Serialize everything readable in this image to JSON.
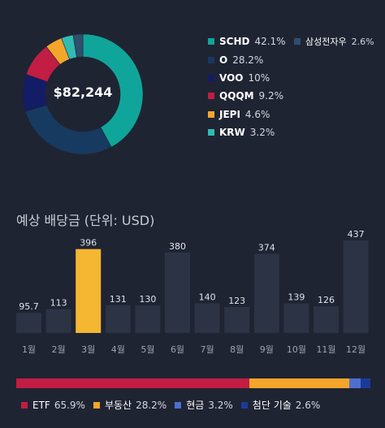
{
  "portfolio": {
    "total": "$82,244",
    "holdings": [
      {
        "name": "SCHD",
        "pct_label": "42.1%",
        "pct": 42.1,
        "color": "#10a59a"
      },
      {
        "name": "O",
        "pct_label": "28.2%",
        "pct": 28.2,
        "color": "#173a60"
      },
      {
        "name": "VOO",
        "pct_label": "10%",
        "pct": 10.0,
        "color": "#141c66"
      },
      {
        "name": "QQQM",
        "pct_label": "9.2%",
        "pct": 9.2,
        "color": "#c21d43"
      },
      {
        "name": "JEPI",
        "pct_label": "4.6%",
        "pct": 4.6,
        "color": "#f4a62a"
      },
      {
        "name": "KRW",
        "pct_label": "3.2%",
        "pct": 3.2,
        "color": "#2fbcb2"
      },
      {
        "name": "삼성전자우",
        "pct_label": "2.6%",
        "pct": 2.6,
        "color": "#2e4f6e"
      }
    ]
  },
  "dividend": {
    "title": "예상 배당금 (단위: USD)",
    "highlight_color": "#f5b731",
    "bar_color": "#2c3344"
  },
  "chart_data": {
    "type": "bar",
    "title": "예상 배당금 (단위: USD)",
    "categories": [
      "1월",
      "2월",
      "3월",
      "4월",
      "5월",
      "6월",
      "7월",
      "8월",
      "9월",
      "10월",
      "11월",
      "12월"
    ],
    "values": [
      95.7,
      113,
      396,
      131,
      130,
      380,
      140,
      123,
      374,
      139,
      126,
      437
    ],
    "value_labels": [
      "95.7",
      "113",
      "396",
      "131",
      "130",
      "380",
      "140",
      "123",
      "374",
      "139",
      "126",
      "437"
    ],
    "highlight_index": 2,
    "ylim": [
      0,
      437
    ]
  },
  "allocation": {
    "segments": [
      {
        "name": "ETF",
        "pct_label": "65.9%",
        "pct": 65.9,
        "color": "#c21d43"
      },
      {
        "name": "부동산",
        "pct_label": "28.2%",
        "pct": 28.2,
        "color": "#f4a62a"
      },
      {
        "name": "현금",
        "pct_label": "3.2%",
        "pct": 3.2,
        "color": "#4d6fd1"
      },
      {
        "name": "첨단 기술",
        "pct_label": "2.6%",
        "pct": 2.6,
        "color": "#1c3a9a"
      }
    ]
  }
}
